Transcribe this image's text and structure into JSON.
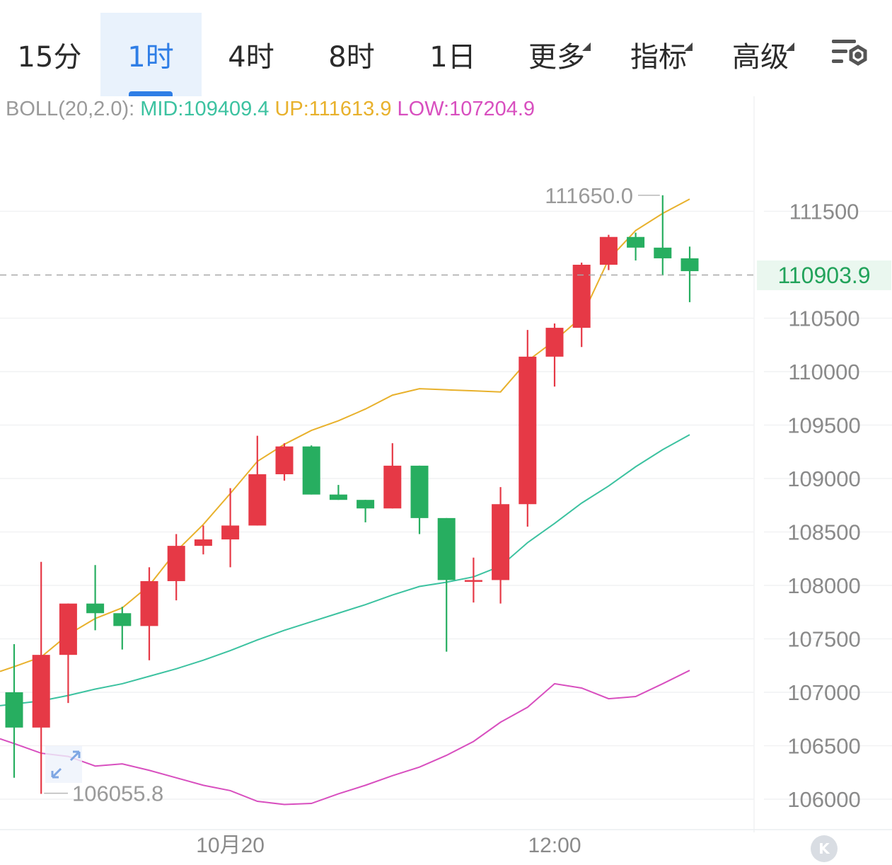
{
  "tabs": [
    {
      "label": "15分",
      "active": false,
      "dropdown": false
    },
    {
      "label": "1时",
      "active": true,
      "dropdown": false
    },
    {
      "label": "4时",
      "active": false,
      "dropdown": false
    },
    {
      "label": "8时",
      "active": false,
      "dropdown": false
    },
    {
      "label": "1日",
      "active": false,
      "dropdown": false
    },
    {
      "label": "更多",
      "active": false,
      "dropdown": true
    },
    {
      "label": "指标",
      "active": false,
      "dropdown": true
    },
    {
      "label": "高级",
      "active": false,
      "dropdown": true
    }
  ],
  "settings_icon": "chart-settings-icon",
  "legend": {
    "name": "BOLL(20,2.0):",
    "mid": "MID:109409.4",
    "up": "UP:111613.9",
    "low": "LOW:107204.9"
  },
  "current_price": "110903.9",
  "corner_badge": "K",
  "colors": {
    "rise": "#e63946",
    "fall": "#27ae60",
    "mid": "#3cc2a0",
    "up": "#e8b12c",
    "low": "#d84fbf",
    "accent": "#2f7ee6"
  },
  "chart_data": {
    "type": "candlestick",
    "y_ticks": [
      106000,
      106500,
      107000,
      107500,
      108000,
      108500,
      109000,
      109500,
      110000,
      110500,
      111500
    ],
    "y_range": [
      105980,
      112440
    ],
    "x_labels": [
      {
        "label": "10月20",
        "index": 8
      },
      {
        "label": "12:00",
        "index": 20
      }
    ],
    "max_marker": {
      "label": "111650.0",
      "value": 111650.0,
      "index": 24
    },
    "min_marker": {
      "label": "106055.8",
      "value": 106055.8,
      "index": 1
    },
    "current_price": 110903.9,
    "candles": [
      {
        "o": 107000,
        "h": 107450,
        "l": 106200,
        "c": 106670
      },
      {
        "o": 106670,
        "h": 108220,
        "l": 106050,
        "c": 107350
      },
      {
        "o": 107350,
        "h": 107830,
        "l": 106900,
        "c": 107830
      },
      {
        "o": 107830,
        "h": 108190,
        "l": 107580,
        "c": 107740
      },
      {
        "o": 107740,
        "h": 107800,
        "l": 107400,
        "c": 107620
      },
      {
        "o": 107620,
        "h": 108170,
        "l": 107300,
        "c": 108040
      },
      {
        "o": 108040,
        "h": 108480,
        "l": 107860,
        "c": 108370
      },
      {
        "o": 108370,
        "h": 108560,
        "l": 108290,
        "c": 108430
      },
      {
        "o": 108430,
        "h": 108910,
        "l": 108170,
        "c": 108560
      },
      {
        "o": 108560,
        "h": 109400,
        "l": 108560,
        "c": 109040
      },
      {
        "o": 109040,
        "h": 109330,
        "l": 108980,
        "c": 109300
      },
      {
        "o": 109300,
        "h": 109310,
        "l": 108850,
        "c": 108850
      },
      {
        "o": 108850,
        "h": 108940,
        "l": 108800,
        "c": 108800
      },
      {
        "o": 108800,
        "h": 108800,
        "l": 108590,
        "c": 108720
      },
      {
        "o": 108720,
        "h": 109330,
        "l": 108720,
        "c": 109120
      },
      {
        "o": 109120,
        "h": 109120,
        "l": 108480,
        "c": 108630
      },
      {
        "o": 108630,
        "h": 108630,
        "l": 107380,
        "c": 108050
      },
      {
        "o": 108050,
        "h": 108260,
        "l": 107840,
        "c": 108050
      },
      {
        "o": 108050,
        "h": 108920,
        "l": 107830,
        "c": 108760
      },
      {
        "o": 108760,
        "h": 110390,
        "l": 108550,
        "c": 110140
      },
      {
        "o": 110140,
        "h": 110450,
        "l": 109860,
        "c": 110410
      },
      {
        "o": 110410,
        "h": 111020,
        "l": 110230,
        "c": 111000
      },
      {
        "o": 111000,
        "h": 111280,
        "l": 110950,
        "c": 111260
      },
      {
        "o": 111260,
        "h": 111300,
        "l": 111040,
        "c": 111160
      },
      {
        "o": 111160,
        "h": 111650,
        "l": 110900,
        "c": 111060
      },
      {
        "o": 111060,
        "h": 111170,
        "l": 110650,
        "c": 110940
      }
    ],
    "boll_up": [
      107240,
      107330,
      107540,
      107690,
      107790,
      108000,
      108320,
      108570,
      108860,
      109160,
      109320,
      109450,
      109540,
      109650,
      109780,
      109840,
      109830,
      109820,
      109810,
      110100,
      110290,
      110510,
      111050,
      111320,
      111480,
      111613.9
    ],
    "boll_mid": [
      106890,
      106920,
      106970,
      107030,
      107080,
      107150,
      107220,
      107300,
      107390,
      107490,
      107580,
      107660,
      107740,
      107820,
      107910,
      107990,
      108030,
      108080,
      108180,
      108400,
      108580,
      108770,
      108930,
      109110,
      109270,
      109409.4
    ],
    "boll_low": [
      106520,
      106430,
      106400,
      106310,
      106330,
      106270,
      106200,
      106130,
      106080,
      105980,
      105950,
      105960,
      106050,
      106130,
      106220,
      106300,
      106410,
      106540,
      106720,
      106860,
      107080,
      107040,
      106940,
      106960,
      107080,
      107204.9
    ]
  }
}
